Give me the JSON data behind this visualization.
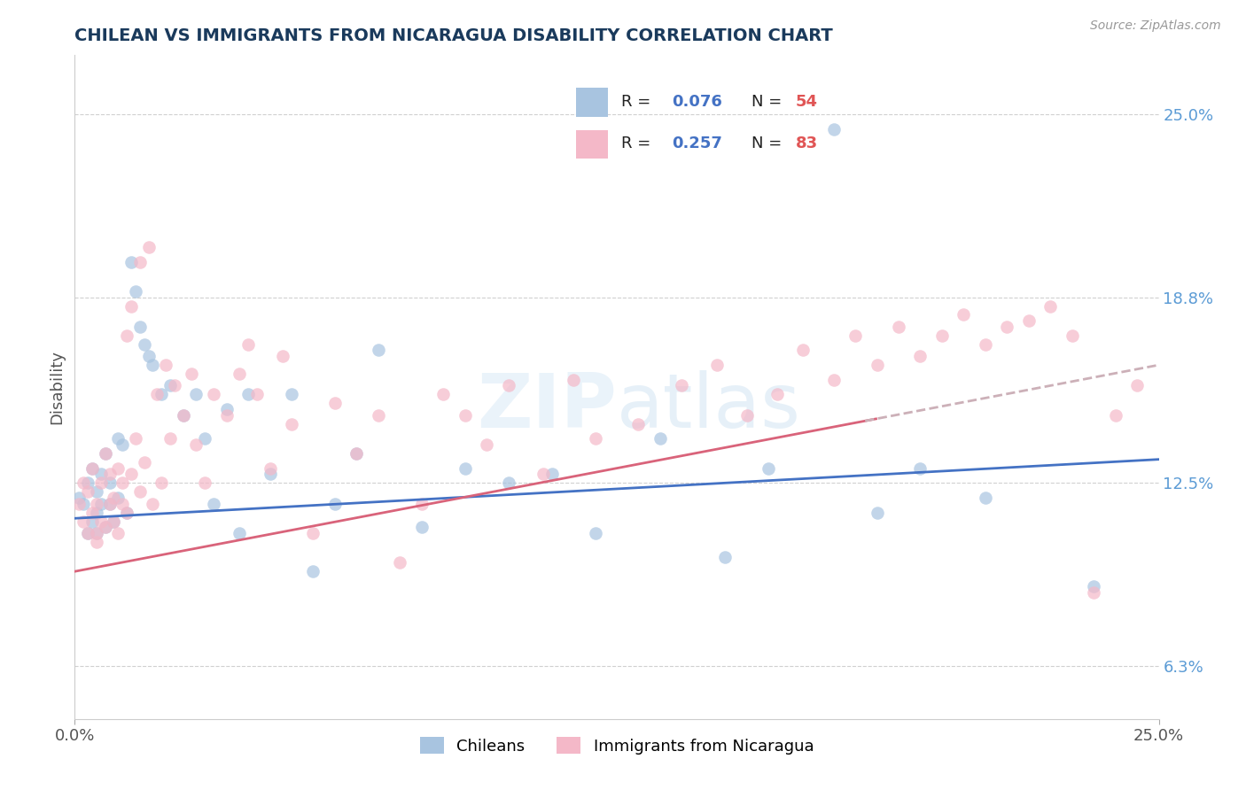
{
  "title": "CHILEAN VS IMMIGRANTS FROM NICARAGUA DISABILITY CORRELATION CHART",
  "source": "Source: ZipAtlas.com",
  "ylabel": "Disability",
  "yticks": [
    0.063,
    0.125,
    0.188,
    0.25
  ],
  "ytick_labels": [
    "6.3%",
    "12.5%",
    "18.8%",
    "25.0%"
  ],
  "xlim": [
    0.0,
    0.25
  ],
  "ylim": [
    0.045,
    0.27
  ],
  "R_chilean": 0.076,
  "N_chilean": 54,
  "R_nicaragua": 0.257,
  "N_nicaragua": 83,
  "chilean_color": "#a8c4e0",
  "nicaragua_color": "#f4b8c8",
  "chilean_line_color": "#4472c4",
  "nicaragua_line_color": "#d9637a",
  "chilean_line_intercept": 0.113,
  "chilean_line_slope": 0.08,
  "nicaragua_line_intercept": 0.095,
  "nicaragua_line_slope": 0.28,
  "chileans_scatter_x": [
    0.001,
    0.002,
    0.003,
    0.003,
    0.004,
    0.004,
    0.005,
    0.005,
    0.005,
    0.006,
    0.006,
    0.007,
    0.007,
    0.008,
    0.008,
    0.009,
    0.01,
    0.01,
    0.011,
    0.012,
    0.013,
    0.014,
    0.015,
    0.016,
    0.017,
    0.018,
    0.02,
    0.022,
    0.025,
    0.028,
    0.03,
    0.032,
    0.035,
    0.038,
    0.04,
    0.045,
    0.05,
    0.055,
    0.06,
    0.065,
    0.07,
    0.08,
    0.09,
    0.1,
    0.11,
    0.12,
    0.135,
    0.15,
    0.16,
    0.175,
    0.185,
    0.195,
    0.21,
    0.235
  ],
  "chileans_scatter_y": [
    0.12,
    0.118,
    0.108,
    0.125,
    0.112,
    0.13,
    0.115,
    0.108,
    0.122,
    0.118,
    0.128,
    0.135,
    0.11,
    0.118,
    0.125,
    0.112,
    0.12,
    0.14,
    0.138,
    0.115,
    0.2,
    0.19,
    0.178,
    0.172,
    0.168,
    0.165,
    0.155,
    0.158,
    0.148,
    0.155,
    0.14,
    0.118,
    0.15,
    0.108,
    0.155,
    0.128,
    0.155,
    0.095,
    0.118,
    0.135,
    0.17,
    0.11,
    0.13,
    0.125,
    0.128,
    0.108,
    0.14,
    0.1,
    0.13,
    0.245,
    0.115,
    0.13,
    0.12,
    0.09
  ],
  "nicaragua_scatter_x": [
    0.001,
    0.002,
    0.002,
    0.003,
    0.003,
    0.004,
    0.004,
    0.005,
    0.005,
    0.005,
    0.006,
    0.006,
    0.007,
    0.007,
    0.008,
    0.008,
    0.009,
    0.009,
    0.01,
    0.01,
    0.011,
    0.011,
    0.012,
    0.012,
    0.013,
    0.013,
    0.014,
    0.015,
    0.015,
    0.016,
    0.017,
    0.018,
    0.019,
    0.02,
    0.021,
    0.022,
    0.023,
    0.025,
    0.027,
    0.028,
    0.03,
    0.032,
    0.035,
    0.038,
    0.04,
    0.042,
    0.045,
    0.048,
    0.05,
    0.055,
    0.06,
    0.065,
    0.07,
    0.075,
    0.08,
    0.085,
    0.09,
    0.095,
    0.1,
    0.108,
    0.115,
    0.12,
    0.13,
    0.14,
    0.148,
    0.155,
    0.162,
    0.168,
    0.175,
    0.18,
    0.185,
    0.19,
    0.195,
    0.2,
    0.205,
    0.21,
    0.215,
    0.22,
    0.225,
    0.23,
    0.235,
    0.24,
    0.245
  ],
  "nicaragua_scatter_y": [
    0.118,
    0.112,
    0.125,
    0.108,
    0.122,
    0.13,
    0.115,
    0.108,
    0.118,
    0.105,
    0.112,
    0.125,
    0.135,
    0.11,
    0.118,
    0.128,
    0.112,
    0.12,
    0.108,
    0.13,
    0.125,
    0.118,
    0.175,
    0.115,
    0.185,
    0.128,
    0.14,
    0.122,
    0.2,
    0.132,
    0.205,
    0.118,
    0.155,
    0.125,
    0.165,
    0.14,
    0.158,
    0.148,
    0.162,
    0.138,
    0.125,
    0.155,
    0.148,
    0.162,
    0.172,
    0.155,
    0.13,
    0.168,
    0.145,
    0.108,
    0.152,
    0.135,
    0.148,
    0.098,
    0.118,
    0.155,
    0.148,
    0.138,
    0.158,
    0.128,
    0.16,
    0.14,
    0.145,
    0.158,
    0.165,
    0.148,
    0.155,
    0.17,
    0.16,
    0.175,
    0.165,
    0.178,
    0.168,
    0.175,
    0.182,
    0.172,
    0.178,
    0.18,
    0.185,
    0.175,
    0.088,
    0.148,
    0.158
  ]
}
